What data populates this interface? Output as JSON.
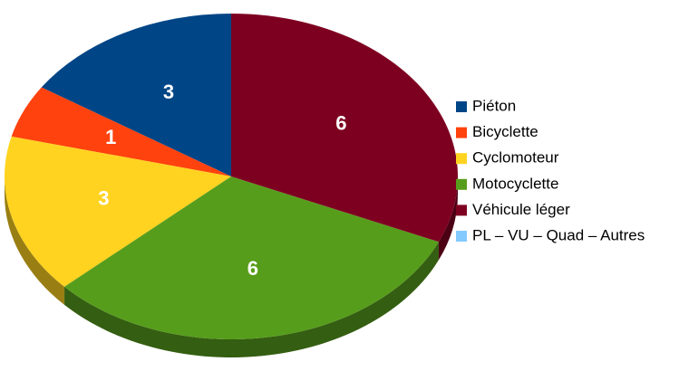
{
  "chart_data": {
    "type": "pie",
    "categories": [
      "Piéton",
      "Bicyclette",
      "Cyclomoteur",
      "Motocyclette",
      "Véhicule léger",
      "PL – VU – Quad – Autres"
    ],
    "values": [
      3,
      1,
      3,
      6,
      6,
      0
    ],
    "colors": [
      "#004586",
      "#ff420e",
      "#ffd320",
      "#579d1c",
      "#7e0021",
      "#83caff"
    ],
    "legend": "right"
  }
}
